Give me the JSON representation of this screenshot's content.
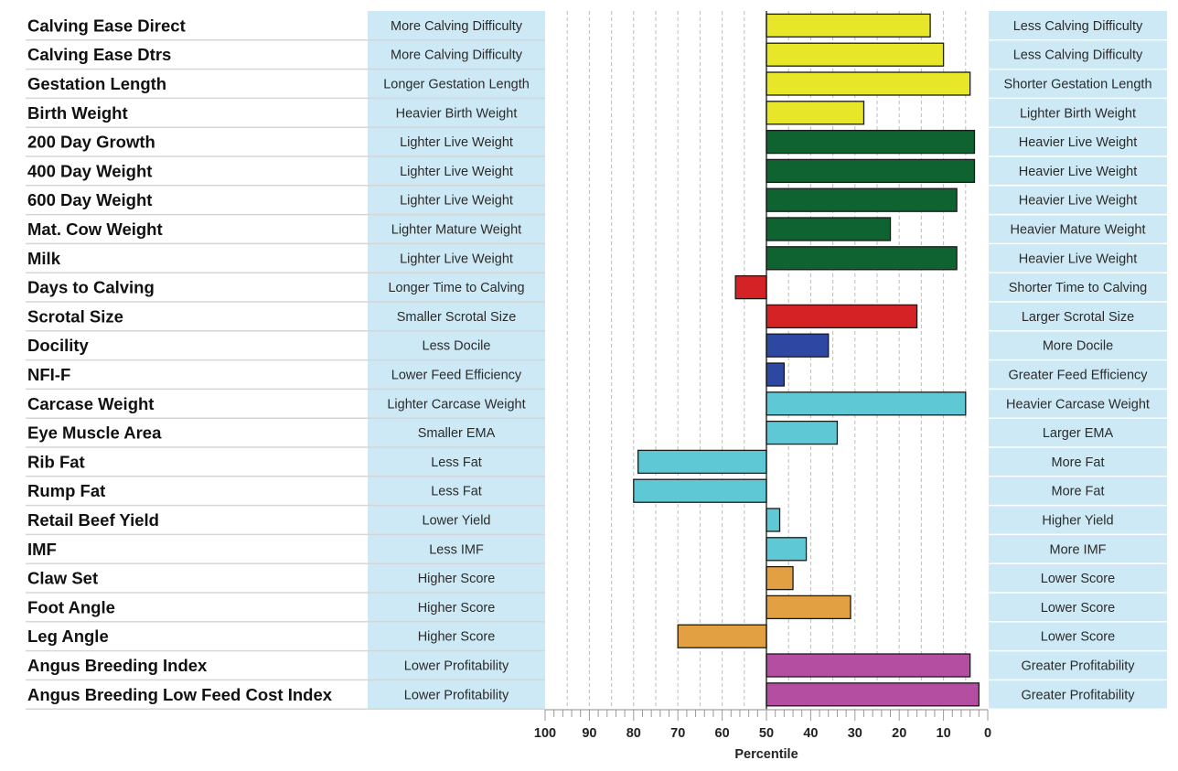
{
  "colors": {
    "calving": "#e8e628",
    "growth": "#0f6331",
    "fertility": "#d42225",
    "temperament": "#2e47a0",
    "carcase": "#5fc8d5",
    "structure": "#e2a043",
    "index": "#b44ea1",
    "desc_box": "#cde9f5",
    "grid": "#bdbdbd"
  },
  "chart_data": {
    "type": "bar",
    "orientation": "horizontal",
    "title": "",
    "xlabel": "Percentile",
    "xlim": [
      100,
      0
    ],
    "x_ticks": [
      100,
      90,
      80,
      70,
      60,
      50,
      40,
      30,
      20,
      10,
      0
    ],
    "baseline": 50,
    "rows": [
      {
        "trait": "Calving Ease Direct",
        "percentile": 13,
        "group": "calving",
        "low_desc": "More Calving Difficulty",
        "high_desc": "Less Calving Difficulty"
      },
      {
        "trait": "Calving Ease Dtrs",
        "percentile": 10,
        "group": "calving",
        "low_desc": "More Calving Difficulty",
        "high_desc": "Less Calving Difficulty"
      },
      {
        "trait": "Gestation Length",
        "percentile": 4,
        "group": "calving",
        "low_desc": "Longer Gestation Length",
        "high_desc": "Shorter Gestation Length"
      },
      {
        "trait": "Birth Weight",
        "percentile": 28,
        "group": "calving",
        "low_desc": "Heavier Birth Weight",
        "high_desc": "Lighter Birth Weight"
      },
      {
        "trait": "200 Day Growth",
        "percentile": 3,
        "group": "growth",
        "low_desc": "Lighter Live Weight",
        "high_desc": "Heavier Live Weight"
      },
      {
        "trait": "400 Day Weight",
        "percentile": 3,
        "group": "growth",
        "low_desc": "Lighter Live Weight",
        "high_desc": "Heavier Live Weight"
      },
      {
        "trait": "600 Day Weight",
        "percentile": 7,
        "group": "growth",
        "low_desc": "Lighter Live Weight",
        "high_desc": "Heavier Live Weight"
      },
      {
        "trait": "Mat. Cow Weight",
        "percentile": 22,
        "group": "growth",
        "low_desc": "Lighter Mature Weight",
        "high_desc": "Heavier Mature Weight"
      },
      {
        "trait": "Milk",
        "percentile": 7,
        "group": "growth",
        "low_desc": "Lighter Live Weight",
        "high_desc": "Heavier Live Weight"
      },
      {
        "trait": "Days to Calving",
        "percentile": 57,
        "group": "fertility",
        "low_desc": "Longer Time to Calving",
        "high_desc": "Shorter Time to Calving"
      },
      {
        "trait": "Scrotal Size",
        "percentile": 16,
        "group": "fertility",
        "low_desc": "Smaller Scrotal Size",
        "high_desc": "Larger Scrotal Size"
      },
      {
        "trait": "Docility",
        "percentile": 36,
        "group": "temperament",
        "low_desc": "Less Docile",
        "high_desc": "More Docile"
      },
      {
        "trait": "NFI-F",
        "percentile": 46,
        "group": "temperament",
        "low_desc": "Lower Feed Efficiency",
        "high_desc": "Greater Feed Efficiency"
      },
      {
        "trait": "Carcase Weight",
        "percentile": 5,
        "group": "carcase",
        "low_desc": "Lighter Carcase Weight",
        "high_desc": "Heavier Carcase Weight"
      },
      {
        "trait": "Eye Muscle Area",
        "percentile": 34,
        "group": "carcase",
        "low_desc": "Smaller EMA",
        "high_desc": "Larger EMA"
      },
      {
        "trait": "Rib Fat",
        "percentile": 79,
        "group": "carcase",
        "low_desc": "Less Fat",
        "high_desc": "More Fat"
      },
      {
        "trait": "Rump Fat",
        "percentile": 80,
        "group": "carcase",
        "low_desc": "Less Fat",
        "high_desc": "More Fat"
      },
      {
        "trait": "Retail Beef Yield",
        "percentile": 47,
        "group": "carcase",
        "low_desc": "Lower Yield",
        "high_desc": "Higher Yield"
      },
      {
        "trait": "IMF",
        "percentile": 41,
        "group": "carcase",
        "low_desc": "Less IMF",
        "high_desc": "More IMF"
      },
      {
        "trait": "Claw Set",
        "percentile": 44,
        "group": "structure",
        "low_desc": "Higher Score",
        "high_desc": "Lower Score"
      },
      {
        "trait": "Foot Angle",
        "percentile": 31,
        "group": "structure",
        "low_desc": "Higher Score",
        "high_desc": "Lower Score"
      },
      {
        "trait": "Leg Angle",
        "percentile": 70,
        "group": "structure",
        "low_desc": "Higher Score",
        "high_desc": "Lower Score"
      },
      {
        "trait": "Angus Breeding Index",
        "percentile": 4,
        "group": "index",
        "low_desc": "Lower Profitability",
        "high_desc": "Greater Profitability"
      },
      {
        "trait": "Angus Breeding Low Feed Cost Index",
        "percentile": 2,
        "group": "index",
        "low_desc": "Lower Profitability",
        "high_desc": "Greater Profitability"
      }
    ]
  }
}
